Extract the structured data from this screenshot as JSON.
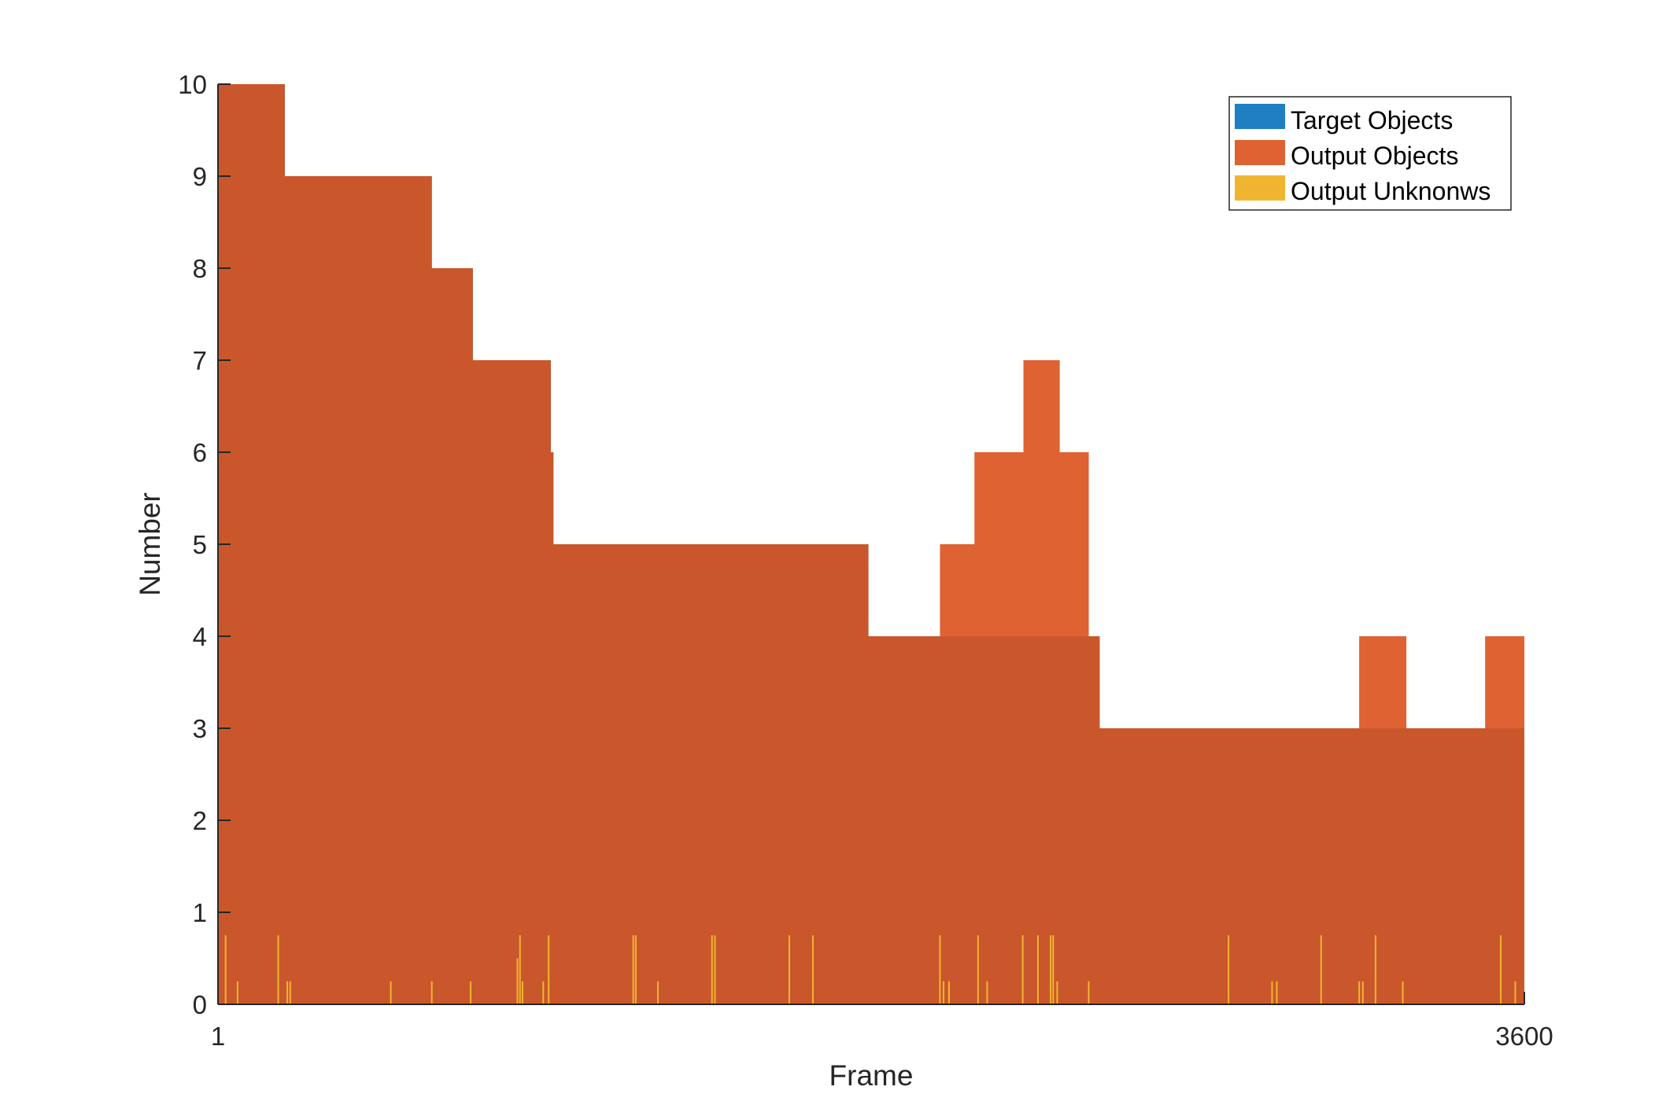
{
  "chart_data": {
    "type": "area",
    "title": "",
    "xlabel": "Frame",
    "ylabel": "Number",
    "xlim": [
      1,
      3600
    ],
    "ylim": [
      0,
      10
    ],
    "x_ticks": [
      1,
      3600
    ],
    "y_ticks": [
      0,
      1,
      2,
      3,
      4,
      5,
      6,
      7,
      8,
      9,
      10
    ],
    "grid": false,
    "legend_position": "top-right",
    "series": [
      {
        "name": "Target Objects",
        "color": "#1f7fc2",
        "steps": [
          [
            1,
            10
          ],
          [
            185,
            9
          ],
          [
            590,
            8
          ],
          [
            703,
            7
          ],
          [
            918,
            6
          ],
          [
            925,
            5
          ],
          [
            1793,
            4
          ],
          [
            2430,
            3
          ],
          [
            3600,
            3
          ]
        ]
      },
      {
        "name": "Output Objects",
        "color": "#de6232",
        "steps": [
          [
            1,
            10
          ],
          [
            185,
            9
          ],
          [
            590,
            8
          ],
          [
            703,
            7
          ],
          [
            918,
            6
          ],
          [
            925,
            5
          ],
          [
            1793,
            4
          ],
          [
            1990,
            5
          ],
          [
            2085,
            6
          ],
          [
            2220,
            7
          ],
          [
            2320,
            6
          ],
          [
            2400,
            4
          ],
          [
            2430,
            3
          ],
          [
            3145,
            4
          ],
          [
            3275,
            3
          ],
          [
            3492,
            4
          ],
          [
            3600,
            4
          ]
        ]
      },
      {
        "name": "Output Unknonws",
        "color": "#f0b530",
        "spikes": [
          [
            22,
            0.75
          ],
          [
            55,
            0.25
          ],
          [
            167,
            0.75
          ],
          [
            192,
            0.25
          ],
          [
            200,
            0.25
          ],
          [
            477,
            0.25
          ],
          [
            590,
            0.25
          ],
          [
            697,
            0.25
          ],
          [
            826,
            0.5
          ],
          [
            833,
            0.75
          ],
          [
            840,
            0.25
          ],
          [
            897,
            0.25
          ],
          [
            912,
            0.75
          ],
          [
            1145,
            0.75
          ],
          [
            1152,
            0.75
          ],
          [
            1213,
            0.25
          ],
          [
            1362,
            0.75
          ],
          [
            1370,
            0.75
          ],
          [
            1575,
            0.75
          ],
          [
            1640,
            0.75
          ],
          [
            1990,
            0.75
          ],
          [
            2000,
            0.25
          ],
          [
            2015,
            0.25
          ],
          [
            2095,
            0.75
          ],
          [
            2120,
            0.25
          ],
          [
            2218,
            0.75
          ],
          [
            2260,
            0.75
          ],
          [
            2295,
            0.75
          ],
          [
            2302,
            0.75
          ],
          [
            2313,
            0.25
          ],
          [
            2400,
            0.25
          ],
          [
            2785,
            0.75
          ],
          [
            2905,
            0.25
          ],
          [
            2918,
            0.25
          ],
          [
            3040,
            0.75
          ],
          [
            3145,
            0.25
          ],
          [
            3155,
            0.25
          ],
          [
            3190,
            0.75
          ],
          [
            3265,
            0.25
          ],
          [
            3535,
            0.75
          ],
          [
            3575,
            0.25
          ]
        ]
      }
    ]
  }
}
